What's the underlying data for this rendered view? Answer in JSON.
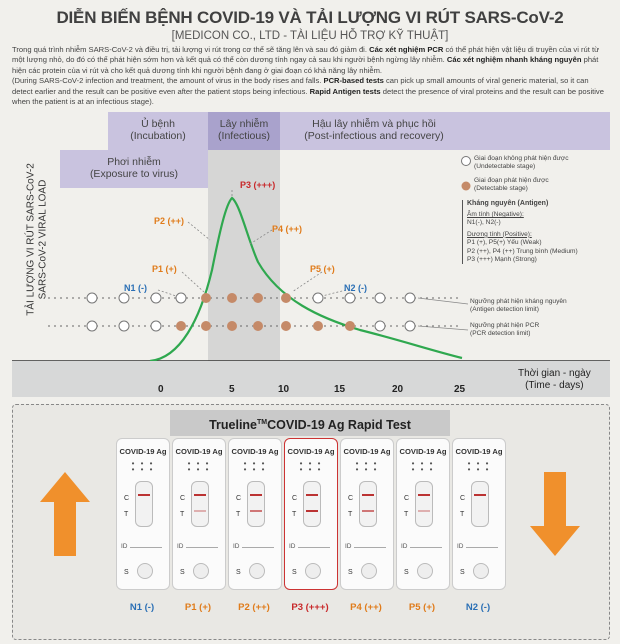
{
  "header": {
    "title": "DIỄN BIẾN BỆNH COVID-19 VÀ TẢI LƯỢNG VI RÚT SARS-CoV-2",
    "subtitle": "[MEDICON CO., LTD - TÀI LIỆU HỖ TRỢ KỸ THUẬT]"
  },
  "intro": {
    "vi_1": "Trong quá trình nhiễm SARS-CoV-2 và điều trị, tải lượng vi rút trong cơ thể sẽ tăng lên và sau đó giảm đi. ",
    "vi_pcr_bold": "Các xét nghiệm PCR",
    "vi_2": " có thể phát hiện vật liệu di truyền của vi rút từ một lượng nhỏ, do đó có thể phát hiện sớm hơn và kết quả có thể còn dương tính ngay cả sau khi người bệnh ngừng lây nhiễm. ",
    "vi_ag_bold": "Các xét nghiệm nhanh kháng nguyên",
    "vi_3": " phát hiện các protein của vi rút và cho kết quả dương tính khi người bệnh đang ở giai đoạn có khả năng lây nhiễm.",
    "en_1": "(During SARS-CoV-2 infection and treatment, the amount of virus in the body rises and falls. ",
    "en_pcr_bold": "PCR-based tests",
    "en_2": " can pick up small amounts of viral generic material, so it can detect earlier and the result can be positive even after the patient stops being infectious. ",
    "en_ag_bold": "Rapid Antigen tests",
    "en_3": " detect the presence of viral proteins and the result can be positive when the patient is at an infectious stage)."
  },
  "phases": {
    "incubation": {
      "vi": "Ủ bệnh",
      "en": "(Incubation)"
    },
    "infectious": {
      "vi": "Lây nhiễm",
      "en": "(Infectious)"
    },
    "post": {
      "vi": "Hậu lây nhiễm và phục hồi",
      "en": "(Post-infectious and recovery)"
    },
    "exposure": {
      "vi": "Phơi nhiễm",
      "en": "(Exposure to virus)"
    }
  },
  "yaxis": {
    "vi": "TẢI LƯỢNG VI RÚT SARS-CoV-2",
    "en": "SARS-CoV-2 VIRAL LOAD"
  },
  "xaxis": {
    "title_vi": "Thời gian - ngày",
    "title_en": "(Time - days)",
    "ticks": [
      "0",
      "5",
      "10",
      "15",
      "20",
      "25"
    ]
  },
  "curve_labels": {
    "p3": "P3 (+++)",
    "p2": "P2 (++)",
    "p4": "P4 (++)",
    "p1": "P1 (+)",
    "p5": "P5 (+)",
    "n1": "N1 (-)",
    "n2": "N2 (-)"
  },
  "legend": {
    "undetectable_vi": "Giai đoạn không phát hiện được",
    "undetectable_en": "(Undetectable stage)",
    "detectable_vi": "Giai đoạn phát hiện được",
    "detectable_en": "(Detectable stage)",
    "ag_title": "Kháng nguyên (Antigen)",
    "neg_title": "Âm tính (Negative):",
    "neg_values": "N1(-), N2(-)",
    "pos_title": "Dương tính (Positive):",
    "pos_weak": "P1 (+), P5(+) Yếu (Weak)",
    "pos_medium": "P2 (++), P4 (++) Trung bình (Medium)",
    "pos_strong": "P3 (+++) Mạnh (Strong)"
  },
  "limits": {
    "antigen_vi": "Ngưỡng phát hiện kháng nguyên",
    "antigen_en": "(Antigen detection limit)",
    "pcr_vi": "Ngưỡng phát hiện PCR",
    "pcr_en": "(PCR detection limit)"
  },
  "test_panel": {
    "title_main": "Trueline",
    "title_tm": "TM",
    "title_rest": "COVID-19 Ag Rapid Test",
    "cassette_name": "COVID-19 Ag",
    "c_label": "C",
    "t_label": "T",
    "id_label": "ID",
    "s_label": "S",
    "results": [
      "N1 (-)",
      "P1 (+)",
      "P2 (++)",
      "P3 (+++)",
      "P4 (++)",
      "P5 (+)",
      "N2 (-)"
    ]
  },
  "colors": {
    "curve": "#2fa84f",
    "detectable": "#c58a68",
    "negative_text": "#2a6fb5",
    "positive_text": "#e07b1a",
    "p3_text": "#c8282a",
    "phase_band": "#c9c3df",
    "infectious_band": "#b8b8b8",
    "arrow": "#f0902c"
  }
}
